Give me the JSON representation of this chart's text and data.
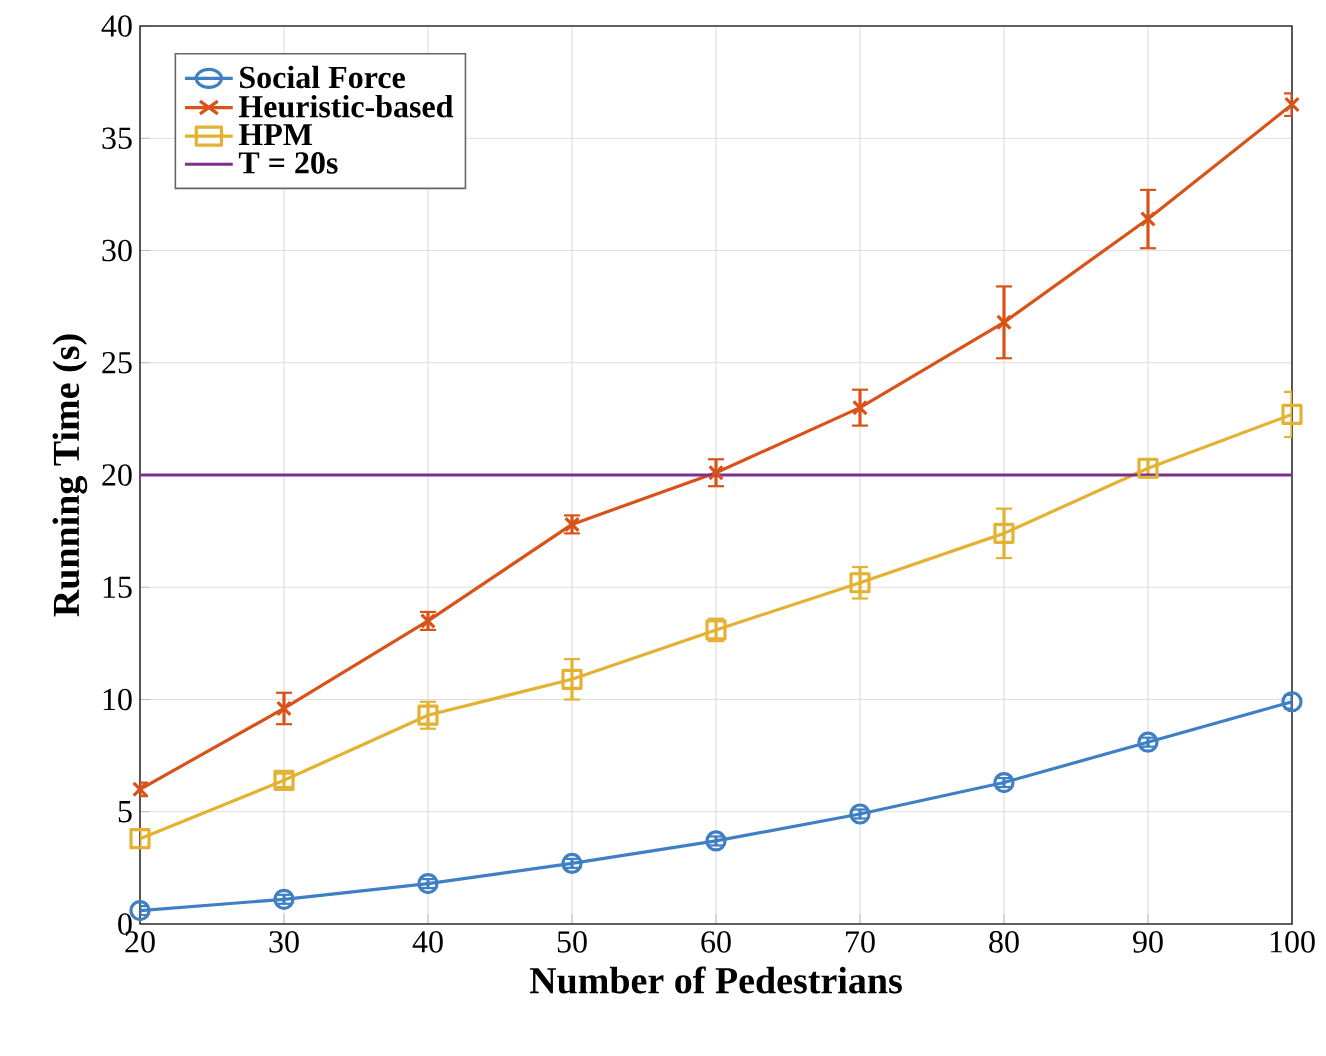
{
  "chart_data": {
    "type": "line",
    "xlabel": "Number of Pedestrians",
    "ylabel": "Running Time (s)",
    "x": [
      20,
      30,
      40,
      50,
      60,
      70,
      80,
      90,
      100
    ],
    "series": [
      {
        "name": "Social Force",
        "color": "#3f7fc4",
        "marker": "circle",
        "values": [
          0.6,
          1.1,
          1.8,
          2.7,
          3.7,
          4.9,
          6.3,
          8.1,
          9.9
        ],
        "errors": [
          0.2,
          0.2,
          0.2,
          0.2,
          0.2,
          0.2,
          0.2,
          0.2,
          0.3
        ]
      },
      {
        "name": "Heuristic-based",
        "color": "#d95319",
        "marker": "cross",
        "values": [
          6.0,
          9.6,
          13.5,
          17.8,
          20.1,
          23.0,
          26.8,
          31.4,
          36.5
        ],
        "errors": [
          0.3,
          0.7,
          0.4,
          0.4,
          0.6,
          0.8,
          1.6,
          1.3,
          0.5
        ]
      },
      {
        "name": "HPM",
        "color": "#e3b232",
        "marker": "square",
        "values": [
          3.8,
          6.4,
          9.3,
          10.9,
          13.1,
          15.2,
          17.4,
          20.3,
          22.7
        ],
        "errors": [
          0.4,
          0.3,
          0.6,
          0.9,
          0.5,
          0.7,
          1.1,
          0.4,
          1.0
        ]
      }
    ],
    "ref_lines": [
      {
        "axis": "y",
        "value": 20,
        "label": "T = 20s",
        "color": "#7e2f8e"
      }
    ],
    "xlim": [
      20,
      100
    ],
    "xticks": [
      20,
      30,
      40,
      50,
      60,
      70,
      80,
      90,
      100
    ],
    "ylim": [
      0,
      40
    ],
    "yticks": [
      0,
      5,
      10,
      15,
      20,
      25,
      30,
      35,
      40
    ],
    "grid": true,
    "legend": "top left"
  }
}
